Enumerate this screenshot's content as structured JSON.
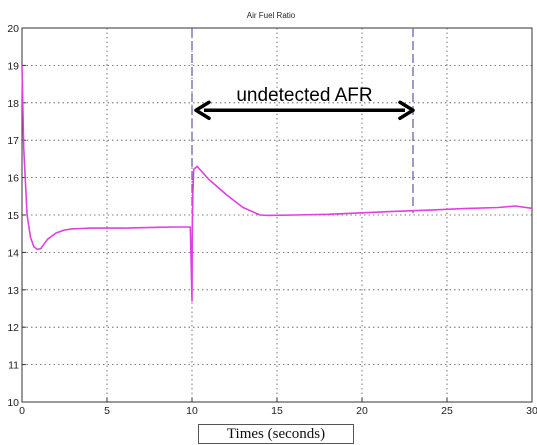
{
  "chart_data": {
    "type": "line",
    "title": "Air Fuel Ratio",
    "xlabel": "Times (seconds)",
    "ylabel": "",
    "xlim": [
      0,
      30
    ],
    "ylim": [
      10,
      20
    ],
    "xticks": [
      0,
      5,
      10,
      15,
      20,
      25,
      30
    ],
    "yticks": [
      10,
      11,
      12,
      13,
      14,
      15,
      16,
      17,
      18,
      19,
      20
    ],
    "grid": true,
    "series": [
      {
        "color": "#e040e0",
        "x": [
          0,
          0.1,
          0.3,
          0.5,
          0.7,
          0.9,
          1.1,
          1.5,
          2.0,
          2.5,
          3.0,
          3.5,
          4.0,
          5.0,
          6.0,
          7.0,
          8.0,
          9.0,
          9.9,
          10.0,
          10.02,
          10.05,
          10.1,
          10.3,
          11.0,
          12.0,
          13.0,
          14.0,
          14.5,
          16.0,
          18.0,
          20.0,
          22.0,
          24.0,
          26.0,
          28.0,
          29.0,
          30.0
        ],
        "y": [
          19.0,
          16.8,
          15.0,
          14.4,
          14.15,
          14.08,
          14.1,
          14.35,
          14.52,
          14.6,
          14.63,
          14.64,
          14.65,
          14.65,
          14.65,
          14.66,
          14.67,
          14.68,
          14.68,
          12.7,
          14.68,
          15.6,
          16.22,
          16.3,
          15.95,
          15.55,
          15.2,
          15.0,
          14.99,
          15.0,
          15.02,
          15.06,
          15.1,
          15.13,
          15.17,
          15.2,
          15.24,
          15.18
        ]
      }
    ],
    "markers": [
      {
        "x": 10.0,
        "style": "dashed",
        "color": "#5a5aa8"
      },
      {
        "x": 23.0,
        "style": "dashed",
        "color": "#5a5aa8"
      }
    ],
    "annotation": {
      "text": "undetected AFR",
      "arrow_from": 10.0,
      "arrow_to": 23.0,
      "arrow_y": 17.8,
      "text_y": 18.0
    }
  }
}
